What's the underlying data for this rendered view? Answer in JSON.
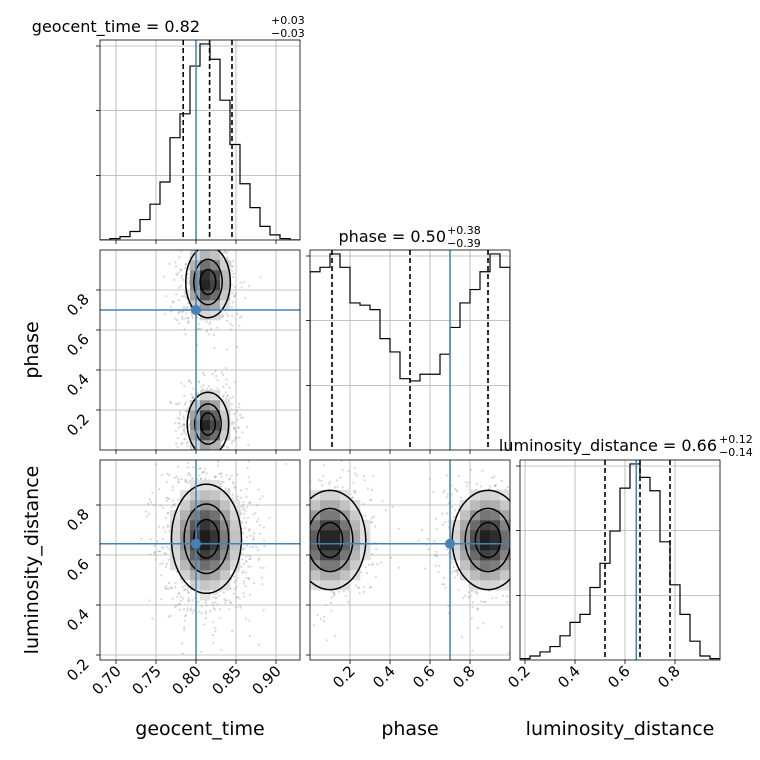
{
  "chart_data": {
    "type": "corner",
    "colors": {
      "truth": "#4682b4",
      "line": "#000000",
      "grid": "#b0b0b0",
      "scatter": "#8c8c8c"
    },
    "grid": true,
    "parameters": [
      {
        "name": "geocent_time",
        "axis_label": "geocent_time",
        "title_prefix": "geocent_time = 0.82",
        "title_plus": "+0.03",
        "title_minus": "−0.03",
        "range": [
          0.68,
          0.93
        ],
        "ticks": [
          "0.70",
          "0.75",
          "0.80",
          "0.85",
          "0.90"
        ],
        "tick_values": [
          0.7,
          0.75,
          0.8,
          0.85,
          0.9
        ],
        "truth": 0.8,
        "quantiles": [
          0.784,
          0.817,
          0.845
        ],
        "hist": {
          "edges_start": 0.68,
          "bin_width": 0.0125,
          "counts": [
            0,
            0.8,
            2,
            5,
            12,
            21,
            34,
            60,
            74,
            102,
            115,
            106,
            82,
            56,
            33,
            19,
            8,
            3,
            0.8,
            0
          ]
        }
      },
      {
        "name": "phase",
        "axis_label": "phase",
        "title_prefix": "phase = 0.50",
        "title_plus": "+0.38",
        "title_minus": "−0.39",
        "range": [
          0.0,
          1.0
        ],
        "ticks": [
          "0.2",
          "0.4",
          "0.6",
          "0.8"
        ],
        "tick_values": [
          0.2,
          0.4,
          0.6,
          0.8
        ],
        "truth": 0.7,
        "quantiles": [
          0.11,
          0.5,
          0.89
        ],
        "hist": {
          "edges_start": 0.0,
          "bin_width": 0.05,
          "counts": [
            80,
            82,
            88,
            82,
            66,
            65,
            63,
            50,
            44,
            32,
            31,
            34,
            34,
            43,
            55,
            66,
            72,
            80,
            88,
            82
          ]
        }
      },
      {
        "name": "luminosity_distance",
        "axis_label": "luminosity_distance",
        "title_prefix": "luminosity_distance = 0.66",
        "title_plus": "+0.12",
        "title_minus": "−0.14",
        "range": [
          0.18,
          0.98
        ],
        "ticks": [
          "0.2",
          "0.4",
          "0.6",
          "0.8"
        ],
        "tick_values": [
          0.2,
          0.4,
          0.6,
          0.8
        ],
        "truth": 0.645,
        "quantiles": [
          0.52,
          0.66,
          0.78
        ],
        "hist": {
          "edges_start": 0.18,
          "bin_width": 0.04,
          "counts": [
            0.5,
            1.5,
            3,
            5,
            9,
            14,
            17,
            27,
            36,
            48,
            64,
            73,
            68,
            63,
            44,
            28,
            17,
            7,
            1.5,
            0.5
          ]
        }
      }
    ],
    "pairs": [
      {
        "x": "geocent_time",
        "y": "phase",
        "truth": [
          0.8,
          0.7
        ],
        "modes": [
          {
            "cx": 0.815,
            "cy": 0.84,
            "sx": 0.014,
            "sy": 0.09,
            "w": 1.0
          },
          {
            "cx": 0.815,
            "cy": 0.13,
            "sx": 0.013,
            "sy": 0.08,
            "w": 1.0
          }
        ]
      },
      {
        "x": "geocent_time",
        "y": "luminosity_distance",
        "truth": [
          0.8,
          0.645
        ],
        "modes": [
          {
            "cx": 0.813,
            "cy": 0.665,
            "sx": 0.022,
            "sy": 0.11,
            "w": 1.0
          }
        ]
      },
      {
        "x": "phase",
        "y": "luminosity_distance",
        "truth": [
          0.7,
          0.645
        ],
        "modes": [
          {
            "cx": 0.1,
            "cy": 0.66,
            "sx": 0.09,
            "sy": 0.1,
            "w": 1.0
          },
          {
            "cx": 0.89,
            "cy": 0.66,
            "sx": 0.09,
            "sy": 0.1,
            "w": 1.0
          }
        ]
      }
    ]
  }
}
